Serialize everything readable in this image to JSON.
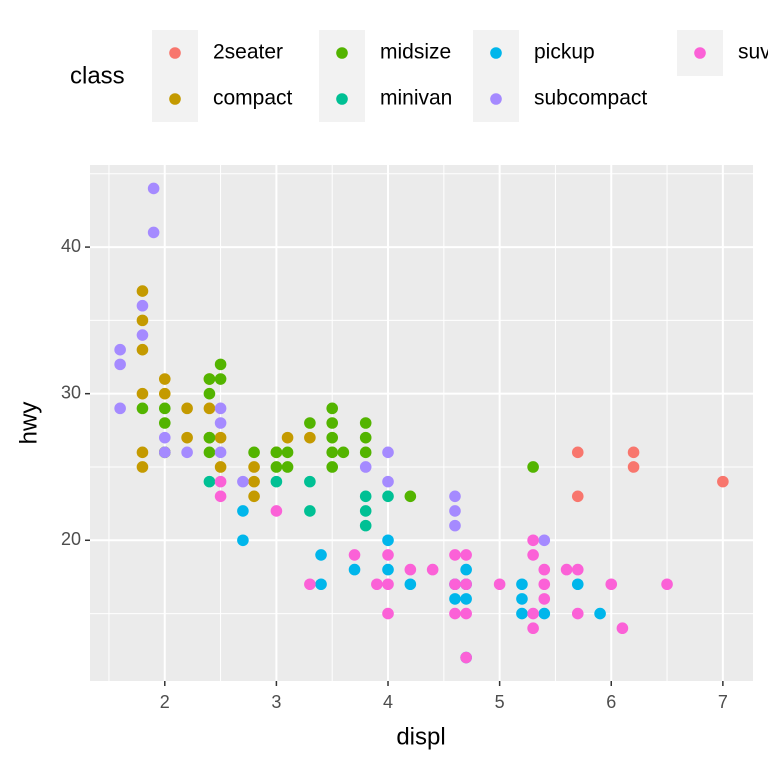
{
  "chart_data": {
    "type": "scatter",
    "x_label": "displ",
    "y_label": "hwy",
    "legend_title": "class",
    "legend": "top",
    "grid": true,
    "xlim": [
      1.33,
      7.27
    ],
    "ylim": [
      10.4,
      45.6
    ],
    "xticks": [
      2,
      3,
      4,
      5,
      6,
      7
    ],
    "yticks": [
      20,
      30,
      40
    ],
    "x_minor_breaks": [
      1.5,
      2.5,
      3.5,
      4.5,
      5.5,
      6.5
    ],
    "y_minor_breaks": [
      15,
      25,
      35,
      45
    ],
    "series": [
      {
        "name": "2seater",
        "color": "#F8766D",
        "x": [
          5.7,
          5.7,
          6.2,
          6.2,
          7
        ],
        "y": [
          26,
          23,
          26,
          25,
          24
        ]
      },
      {
        "name": "compact",
        "color": "#C49A00",
        "x": [
          1.8,
          1.8,
          1.8,
          1.8,
          1.8,
          1.8,
          2.0,
          2.0,
          2.0,
          2.2,
          2.2,
          2.4,
          2.4,
          2.4,
          2.5,
          2.5,
          2.8,
          2.8,
          2.8,
          3.0,
          3.1,
          3.3
        ],
        "y": [
          37,
          35,
          33,
          30,
          26,
          25,
          31,
          30,
          26,
          29,
          27,
          31,
          29,
          27,
          27,
          25,
          25,
          24,
          23,
          26,
          27,
          27
        ]
      },
      {
        "name": "midsize",
        "color": "#53B400",
        "x": [
          1.8,
          2.0,
          2.0,
          2.0,
          2.4,
          2.4,
          2.4,
          2.4,
          2.5,
          2.5,
          2.8,
          3.0,
          3.0,
          3.1,
          3.1,
          3.3,
          3.5,
          3.5,
          3.5,
          3.5,
          3.5,
          3.6,
          3.8,
          3.8,
          3.8,
          4.2,
          5.3
        ],
        "y": [
          29,
          29,
          28,
          26,
          31,
          30,
          27,
          26,
          32,
          31,
          26,
          26,
          25,
          26,
          25,
          28,
          29,
          28,
          27,
          26,
          25,
          26,
          28,
          27,
          26,
          23,
          25
        ]
      },
      {
        "name": "minivan",
        "color": "#00C094",
        "x": [
          2.4,
          3.0,
          3.3,
          3.3,
          3.8,
          3.8,
          3.8,
          4.0
        ],
        "y": [
          24,
          24,
          24,
          22,
          23,
          22,
          21,
          23
        ]
      },
      {
        "name": "pickup",
        "color": "#00B6EB",
        "x": [
          2.7,
          2.7,
          3.4,
          3.4,
          3.7,
          4.0,
          4.0,
          4.2,
          4.6,
          4.6,
          4.7,
          4.7,
          4.7,
          4.7,
          5.2,
          5.2,
          5.2,
          5.4,
          5.7,
          5.9
        ],
        "y": [
          22,
          20,
          19,
          17,
          18,
          20,
          18,
          17,
          17,
          16,
          18,
          17,
          16,
          12,
          17,
          16,
          15,
          15,
          17,
          15
        ]
      },
      {
        "name": "subcompact",
        "color": "#A58AFF",
        "x": [
          1.6,
          1.6,
          1.6,
          1.8,
          1.8,
          1.9,
          1.9,
          2.0,
          2.0,
          2.2,
          2.5,
          2.5,
          2.5,
          2.7,
          3.8,
          4.0,
          4.0,
          4.6,
          4.6,
          4.6,
          5.4
        ],
        "y": [
          33,
          32,
          29,
          36,
          34,
          44,
          41,
          27,
          26,
          26,
          29,
          28,
          26,
          24,
          25,
          26,
          24,
          23,
          22,
          21,
          20
        ]
      },
      {
        "name": "suv",
        "color": "#FB61D7",
        "x": [
          2.5,
          2.5,
          3.0,
          3.3,
          3.7,
          3.9,
          4.0,
          4.0,
          4.0,
          4.2,
          4.4,
          4.6,
          4.6,
          4.6,
          4.7,
          4.7,
          4.7,
          4.7,
          5.0,
          5.3,
          5.3,
          5.3,
          5.3,
          5.4,
          5.4,
          5.4,
          5.6,
          5.7,
          5.7,
          6.0,
          6.1,
          6.5
        ],
        "y": [
          24,
          23,
          22,
          17,
          19,
          17,
          19,
          17,
          15,
          18,
          18,
          19,
          17,
          15,
          19,
          17,
          15,
          12,
          17,
          20,
          19,
          15,
          14,
          18,
          17,
          16,
          18,
          18,
          15,
          17,
          14,
          17
        ]
      }
    ]
  }
}
